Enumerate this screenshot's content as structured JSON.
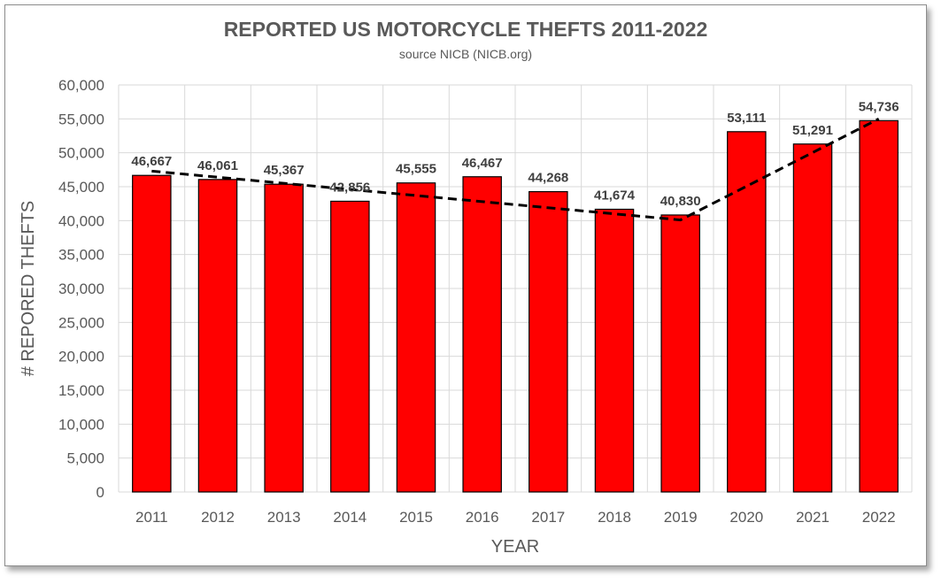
{
  "chart_data": {
    "type": "bar",
    "title": "REPORTED US MOTORCYCLE THEFTS 2011-2022",
    "subtitle": "source NICB (NICB.org)",
    "xlabel": "YEAR",
    "ylabel": "# REPORED THEFTS",
    "categories": [
      "2011",
      "2012",
      "2013",
      "2014",
      "2015",
      "2016",
      "2017",
      "2018",
      "2019",
      "2020",
      "2021",
      "2022"
    ],
    "values": [
      46667,
      46061,
      45367,
      42856,
      45555,
      46467,
      44268,
      41674,
      40830,
      53111,
      51291,
      54736
    ],
    "data_labels": [
      "46,667",
      "46,061",
      "45,367",
      "42,856",
      "45,555",
      "46,467",
      "44,268",
      "41,674",
      "40,830",
      "53,111",
      "51,291",
      "54,736"
    ],
    "ylim": [
      0,
      60000
    ],
    "yticks": [
      "0",
      "5,000",
      "10,000",
      "15,000",
      "20,000",
      "25,000",
      "30,000",
      "35,000",
      "40,000",
      "45,000",
      "50,000",
      "55,000",
      "60,000"
    ],
    "ytick_values": [
      0,
      5000,
      10000,
      15000,
      20000,
      25000,
      30000,
      35000,
      40000,
      45000,
      50000,
      55000,
      60000
    ],
    "grid": true,
    "bar_color": "#ff0000",
    "trend_line": {
      "style": "dashed",
      "color": "#000000",
      "points": [
        {
          "x": "2011",
          "y": 47300
        },
        {
          "x": "2019",
          "y": 40100
        },
        {
          "x": "2022",
          "y": 55000
        }
      ]
    }
  }
}
